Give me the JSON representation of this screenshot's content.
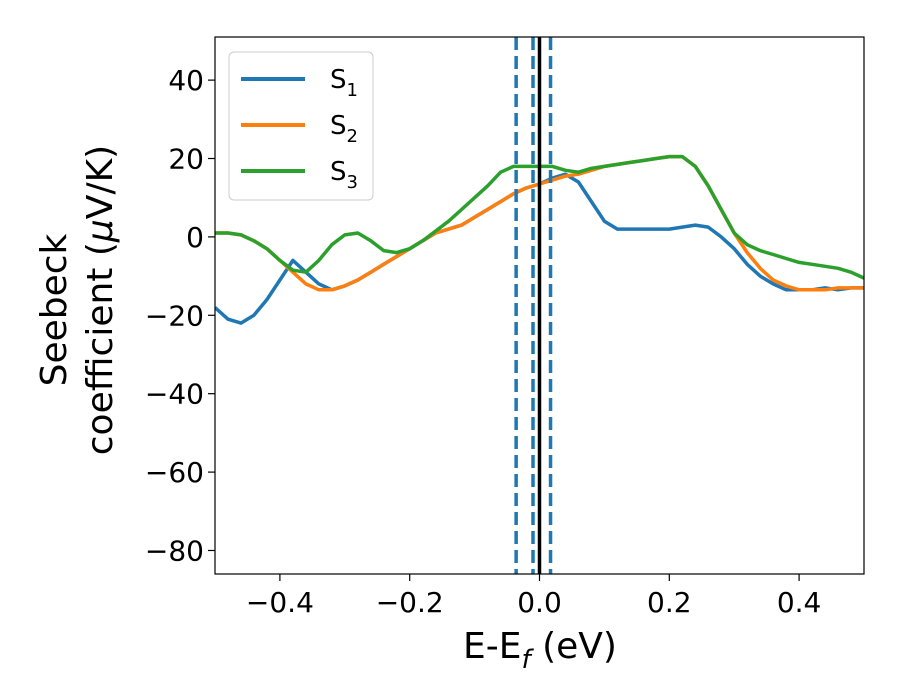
{
  "chart_data": {
    "type": "line",
    "xlabel_main": "E-E",
    "xlabel_sub": "f",
    "xlabel_unit": " (eV)",
    "ylabel_line1": "Seebeck",
    "ylabel_line2": "coefficient  (",
    "ylabel_mu": "μ",
    "ylabel_unit": "V/K)",
    "xlim": [
      -0.5,
      0.5
    ],
    "ylim": [
      -86,
      51
    ],
    "xticks": [
      -0.4,
      -0.2,
      0.0,
      0.2,
      0.4
    ],
    "xtick_labels": [
      "−0.4",
      "−0.2",
      "0.0",
      "0.2",
      "0.4"
    ],
    "yticks": [
      -80,
      -60,
      -40,
      -20,
      0,
      20,
      40
    ],
    "ytick_labels": [
      "−80",
      "−60",
      "−40",
      "−20",
      "0",
      "20",
      "40"
    ],
    "legend_position": "top-left",
    "grid": false,
    "vertical_lines": [
      {
        "x": 0.0,
        "style": "solid",
        "color": "#000000"
      },
      {
        "x": -0.036,
        "style": "dashed",
        "color": "#1f77b4"
      },
      {
        "x": -0.01,
        "style": "dashed",
        "color": "#1f77b4"
      },
      {
        "x": 0.017,
        "style": "dashed",
        "color": "#1f77b4"
      }
    ],
    "series": [
      {
        "name": "S",
        "sub": "1",
        "color": "#1f77b4",
        "x": [
          -0.5,
          -0.48,
          -0.46,
          -0.44,
          -0.42,
          -0.4,
          -0.38,
          -0.36,
          -0.34,
          -0.32,
          -0.3,
          -0.28,
          -0.26,
          -0.24,
          -0.22,
          -0.2,
          -0.18,
          -0.16,
          -0.14,
          -0.12,
          -0.1,
          -0.08,
          -0.06,
          -0.04,
          -0.02,
          0.0,
          0.02,
          0.04,
          0.06,
          0.08,
          0.1,
          0.12,
          0.14,
          0.16,
          0.18,
          0.2,
          0.22,
          0.24,
          0.26,
          0.28,
          0.3,
          0.32,
          0.34,
          0.36,
          0.38,
          0.4,
          0.42,
          0.44,
          0.46,
          0.48,
          0.5
        ],
        "y": [
          -18,
          -21,
          -22,
          -20,
          -16,
          -11,
          -6,
          -9,
          -12,
          -13.5,
          -12.5,
          -11,
          -9,
          -7,
          -5,
          -3,
          -1,
          1,
          2,
          3,
          5,
          7,
          9,
          11,
          12.5,
          13.5,
          15,
          16,
          14,
          9,
          4,
          2,
          2,
          2,
          2,
          2,
          2.5,
          3,
          2.5,
          0,
          -3,
          -7,
          -10,
          -12,
          -13.5,
          -13.5,
          -13.5,
          -13,
          -13.5,
          -13,
          -13
        ]
      },
      {
        "name": "S",
        "sub": "2",
        "color": "#ff7f0e",
        "x": [
          -0.5,
          -0.48,
          -0.46,
          -0.44,
          -0.42,
          -0.4,
          -0.38,
          -0.36,
          -0.34,
          -0.32,
          -0.3,
          -0.28,
          -0.26,
          -0.24,
          -0.22,
          -0.2,
          -0.18,
          -0.16,
          -0.14,
          -0.12,
          -0.1,
          -0.08,
          -0.06,
          -0.04,
          -0.02,
          0.0,
          0.02,
          0.04,
          0.06,
          0.08,
          0.1,
          0.12,
          0.14,
          0.16,
          0.18,
          0.2,
          0.22,
          0.24,
          0.26,
          0.28,
          0.3,
          0.32,
          0.34,
          0.36,
          0.38,
          0.4,
          0.42,
          0.44,
          0.46,
          0.48,
          0.5
        ],
        "y": [
          1,
          1,
          0.5,
          -1,
          -3,
          -6,
          -9,
          -12,
          -13.5,
          -13.5,
          -12.5,
          -11,
          -9,
          -7,
          -5,
          -3,
          -1,
          1,
          2,
          3,
          5,
          7,
          9,
          11,
          12.5,
          13.5,
          14.5,
          15.5,
          16,
          17,
          18,
          18.5,
          19,
          19.5,
          20,
          20.5,
          20.5,
          18,
          13,
          7,
          1,
          -4,
          -8,
          -11,
          -12.5,
          -13.5,
          -13.5,
          -13.5,
          -13,
          -13,
          -13
        ]
      },
      {
        "name": "S",
        "sub": "3",
        "color": "#2ca02c",
        "x": [
          -0.5,
          -0.48,
          -0.46,
          -0.44,
          -0.42,
          -0.4,
          -0.38,
          -0.36,
          -0.34,
          -0.32,
          -0.3,
          -0.28,
          -0.26,
          -0.24,
          -0.22,
          -0.2,
          -0.18,
          -0.16,
          -0.14,
          -0.12,
          -0.1,
          -0.08,
          -0.06,
          -0.04,
          -0.02,
          0.0,
          0.02,
          0.04,
          0.06,
          0.08,
          0.1,
          0.12,
          0.14,
          0.16,
          0.18,
          0.2,
          0.22,
          0.24,
          0.26,
          0.28,
          0.3,
          0.32,
          0.34,
          0.36,
          0.38,
          0.4,
          0.42,
          0.44,
          0.46,
          0.48,
          0.5
        ],
        "y": [
          1,
          1,
          0.5,
          -1,
          -3,
          -6,
          -8.5,
          -9,
          -6,
          -2,
          0.5,
          1,
          -1,
          -3.5,
          -4,
          -3,
          -1,
          1.5,
          4,
          7,
          10,
          13,
          16.5,
          18,
          18,
          18,
          18,
          17,
          16.5,
          17.5,
          18,
          18.5,
          19,
          19.5,
          20,
          20.5,
          20.5,
          18,
          13,
          7,
          1,
          -2,
          -3.5,
          -4.5,
          -5.5,
          -6.5,
          -7,
          -7.5,
          -8,
          -9,
          -10.5
        ]
      }
    ]
  }
}
